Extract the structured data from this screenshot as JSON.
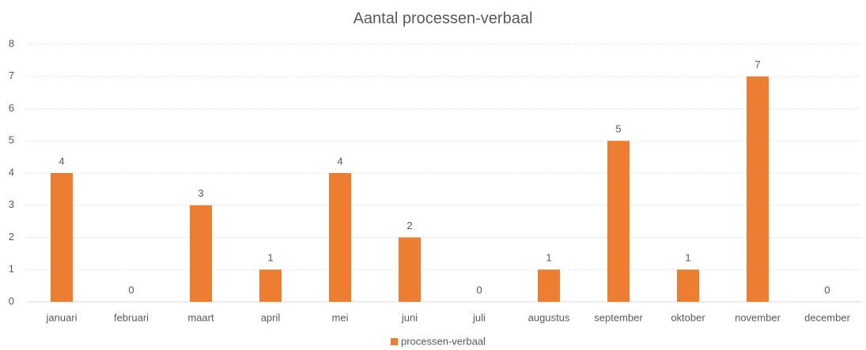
{
  "chart_data": {
    "type": "bar",
    "title": "Aantal processen-verbaal",
    "categories": [
      "januari",
      "februari",
      "maart",
      "april",
      "mei",
      "juni",
      "juli",
      "augustus",
      "september",
      "oktober",
      "november",
      "december"
    ],
    "series": [
      {
        "name": "processen-verbaal",
        "color": "#ed7d31",
        "values": [
          4,
          0,
          3,
          1,
          4,
          2,
          0,
          1,
          5,
          1,
          7,
          0
        ]
      }
    ],
    "ylim": [
      0,
      8
    ],
    "yticks": [
      0,
      1,
      2,
      3,
      4,
      5,
      6,
      7,
      8
    ],
    "grid": true,
    "data_labels": true,
    "legend": "bottom"
  }
}
